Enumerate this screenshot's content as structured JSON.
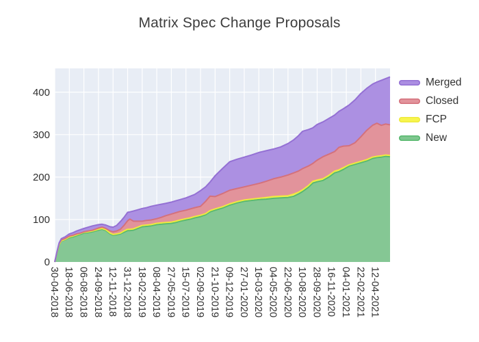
{
  "title": "Matrix Spec Change Proposals",
  "legend": {
    "items": [
      {
        "label": "Merged",
        "color": "#ab8ee2",
        "line": "#9470d4"
      },
      {
        "label": "Closed",
        "color": "#e2939b",
        "line": "#d4717c"
      },
      {
        "label": "FCP",
        "color": "#f8f54e",
        "line": "#eeea3e"
      },
      {
        "label": "New",
        "color": "#7fc78f",
        "line": "#58b96f"
      }
    ]
  },
  "chart_data": {
    "type": "area",
    "stacked": true,
    "title": "Matrix Spec Change Proposals",
    "xlabel": "",
    "ylabel": "",
    "grid": true,
    "plot_bg": "#e8edf5",
    "grid_color": "#ffffff",
    "legend_position": "right-top",
    "y_ticks": [
      0,
      100,
      200,
      300,
      400
    ],
    "y_range": [
      0,
      456
    ],
    "x_range_ticks": [
      0,
      23
    ],
    "x_tick_interval_days": 49,
    "x_tick_labels": [
      "30-04-2018",
      "18-06-2018",
      "06-08-2018",
      "24-09-2018",
      "12-11-2018",
      "31-12-2018",
      "18-02-2019",
      "08-04-2019",
      "27-05-2019",
      "15-07-2019",
      "02-09-2019",
      "21-10-2019",
      "09-12-2019",
      "27-01-2020",
      "16-03-2020",
      "04-05-2020",
      "22-06-2020",
      "10-08-2020",
      "28-09-2020",
      "16-11-2020",
      "04-01-2021",
      "22-02-2021",
      "12-04-2021"
    ],
    "series_order_bottom_to_top": [
      "New",
      "FCP",
      "Closed",
      "Merged"
    ],
    "series_styles": {
      "New": {
        "line": "#58b96f",
        "fill": "#85c794"
      },
      "FCP": {
        "line": "#eeea3e",
        "fill": "#f8f768"
      },
      "Closed": {
        "line": "#d4717c",
        "fill": "#e2939b"
      },
      "Merged": {
        "line": "#9470d4",
        "fill": "#ac90e2"
      }
    },
    "points_t": [
      0,
      0.15,
      0.3,
      0.45,
      0.7,
      1.0,
      1.25,
      1.5,
      1.75,
      2.0,
      2.3,
      2.6,
      3.0,
      3.25,
      3.5,
      3.8,
      4.0,
      4.25,
      4.5,
      4.75,
      5.0,
      5.15,
      5.4,
      5.7,
      6.0,
      6.3,
      6.6,
      7.0,
      7.3,
      7.6,
      8.0,
      8.3,
      8.6,
      9.0,
      9.3,
      9.6,
      10.0,
      10.35,
      10.65,
      11.0,
      11.5,
      12.0,
      12.5,
      13.0,
      13.5,
      14.0,
      14.5,
      15.0,
      15.5,
      16.0,
      16.4,
      16.7,
      17.0,
      17.4,
      17.7,
      18.0,
      18.4,
      18.8,
      19.2,
      19.5,
      19.8,
      20.2,
      20.6,
      21.0,
      21.4,
      21.8,
      22.1,
      22.4,
      22.7,
      23.0
    ],
    "values": {
      "New": [
        0,
        21,
        40,
        49,
        52,
        57,
        59,
        62,
        65,
        68,
        69,
        71,
        75,
        77,
        74,
        66,
        63,
        64,
        66,
        70,
        74,
        74,
        75,
        79,
        83,
        84,
        85,
        88,
        89,
        90,
        91,
        93,
        96,
        99,
        101,
        104,
        107,
        111,
        118,
        122,
        127,
        134,
        139,
        143,
        145,
        147,
        148,
        150,
        151,
        152,
        155,
        160,
        166,
        176,
        186,
        189,
        192,
        200,
        210,
        213,
        218,
        226,
        230,
        234,
        238,
        244,
        246,
        247,
        249,
        248
      ],
      "FCP": [
        0,
        1,
        1,
        1,
        1,
        2,
        2,
        2,
        2,
        2,
        2,
        2,
        2,
        2,
        2,
        2,
        2,
        2,
        2,
        3,
        3,
        3,
        3,
        3,
        3,
        3,
        3,
        3,
        3,
        3,
        3,
        3,
        3,
        3,
        3,
        3,
        3,
        3,
        3,
        3,
        3,
        3,
        3,
        3,
        3,
        3,
        4,
        4,
        4,
        4,
        5,
        4,
        4,
        4,
        4,
        4,
        4,
        4,
        4,
        4,
        4,
        3,
        3,
        3,
        3,
        3,
        3,
        3,
        3,
        3
      ],
      "Closed": [
        0,
        1,
        2,
        2,
        2,
        2,
        2,
        2,
        1,
        1,
        2,
        2,
        3,
        3,
        3,
        5,
        6,
        7,
        9,
        13,
        20,
        24,
        18,
        14,
        10,
        11,
        11,
        11,
        13,
        16,
        19,
        20,
        20,
        20,
        21,
        21,
        21,
        29,
        34,
        29,
        31,
        32,
        31,
        31,
        33,
        35,
        38,
        42,
        45,
        49,
        50,
        50,
        50,
        46,
        42,
        47,
        52,
        50,
        46,
        53,
        51,
        45,
        48,
        58,
        69,
        75,
        78,
        72,
        73,
        72
      ],
      "Merged": [
        0,
        1,
        2,
        3,
        4,
        5,
        6,
        7,
        8,
        8,
        9,
        10,
        8,
        7,
        8,
        10,
        11,
        13,
        18,
        19,
        20,
        17,
        24,
        27,
        30,
        30,
        32,
        32,
        31,
        29,
        28,
        28,
        28,
        29,
        30,
        31,
        37,
        34,
        33,
        49,
        59,
        67,
        69,
        70,
        71,
        73,
        72,
        70,
        71,
        74,
        78,
        83,
        88,
        86,
        84,
        84,
        82,
        84,
        86,
        85,
        88,
        96,
        101,
        102,
        99,
        97,
        97,
        106,
        107,
        113
      ]
    }
  }
}
